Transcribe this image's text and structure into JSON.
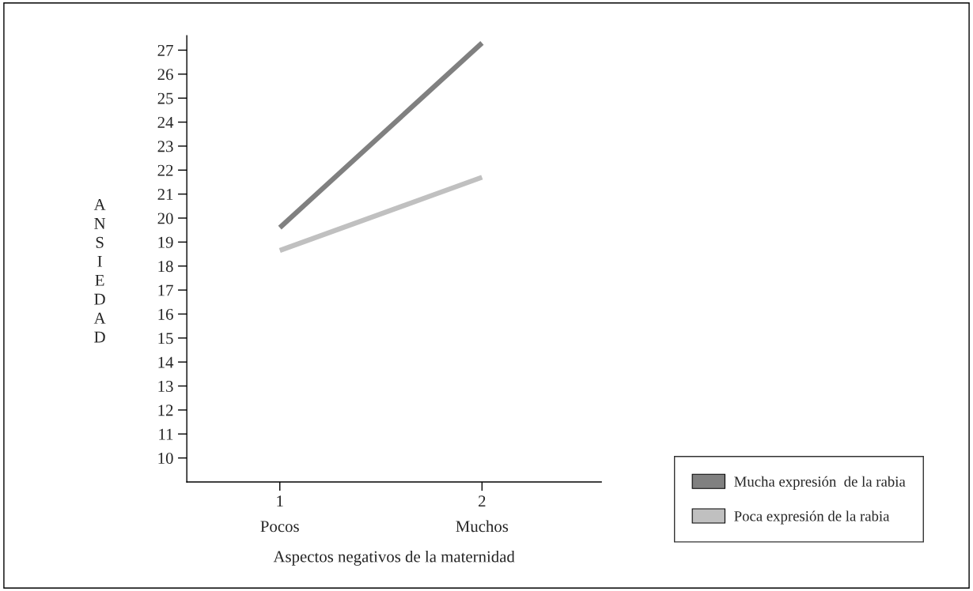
{
  "chart_data": {
    "type": "line",
    "xlabel": "Aspectos negativos de la maternidad",
    "ylabel": "ANSIEDAD",
    "x": [
      1,
      2
    ],
    "series": [
      {
        "name": "Mucha expresión  de la rabia",
        "color": "#808080",
        "values": [
          19.6,
          27.3
        ]
      },
      {
        "name": "Poca expresión de la rabia",
        "color": "#c0c0c0",
        "values": [
          18.65,
          21.7
        ]
      }
    ],
    "xlim": [
      0.54,
      2.59
    ],
    "xticks": [
      {
        "value": 1,
        "label": "1\nPocos"
      },
      {
        "value": 2,
        "label": "2\nMuchos"
      }
    ],
    "ylim": [
      9,
      27.6
    ],
    "yticks": [
      10,
      11,
      12,
      13,
      14,
      15,
      16,
      17,
      18,
      19,
      20,
      21,
      22,
      23,
      24,
      25,
      26,
      27
    ],
    "grid": false,
    "legend": "bottom right",
    "marker": "none",
    "line_style": "solid"
  }
}
